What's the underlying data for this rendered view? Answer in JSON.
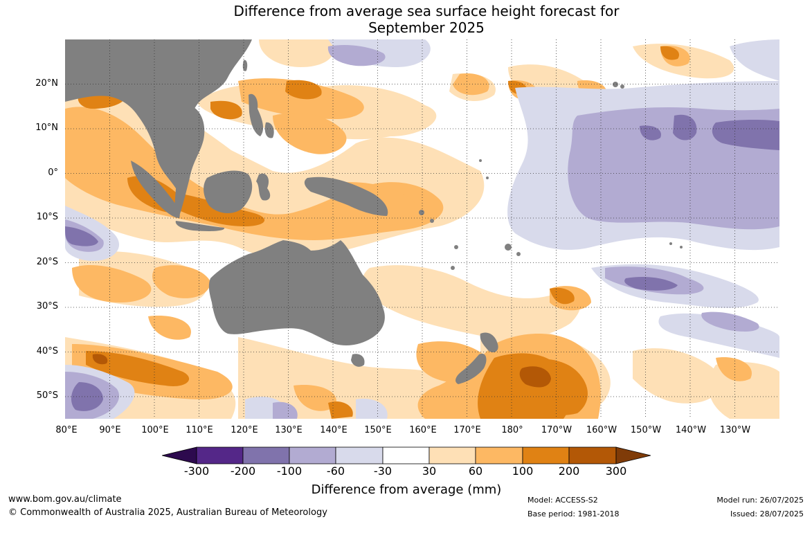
{
  "title": {
    "line1": "Difference from average sea surface height forecast for",
    "line2": "September 2025"
  },
  "map": {
    "lat_labels": [
      "20°N",
      "10°N",
      "0°",
      "10°S",
      "20°S",
      "30°S",
      "40°S",
      "50°S"
    ],
    "lon_labels": [
      "80°E",
      "90°E",
      "100°E",
      "110°E",
      "120°E",
      "130°E",
      "140°E",
      "150°E",
      "160°E",
      "170°E",
      "180°",
      "170°W",
      "160°W",
      "150°W",
      "140°W",
      "130°W"
    ],
    "land_color": "#808080",
    "grid_style": "dotted"
  },
  "colorbar": {
    "ticks": [
      "-300",
      "-200",
      "-100",
      "-60",
      "-30",
      "30",
      "60",
      "100",
      "200",
      "300"
    ],
    "colors": [
      "#2d0a4e",
      "#542788",
      "#8073ac",
      "#b2abd2",
      "#d8daeb",
      "#ffffff",
      "#fee0b6",
      "#fdb863",
      "#e08214",
      "#b35806",
      "#7f3b08"
    ],
    "label": "Difference from average (mm)"
  },
  "footer": {
    "url": "www.bom.gov.au/climate",
    "copyright": "© Commonwealth of Australia 2025, Australian Bureau of Meteorology",
    "model": "Model: ACCESS-S2",
    "base_period": "Base period: 1981-2018",
    "model_run": "Model run: 26/07/2025",
    "issued": "Issued: 28/07/2025"
  }
}
